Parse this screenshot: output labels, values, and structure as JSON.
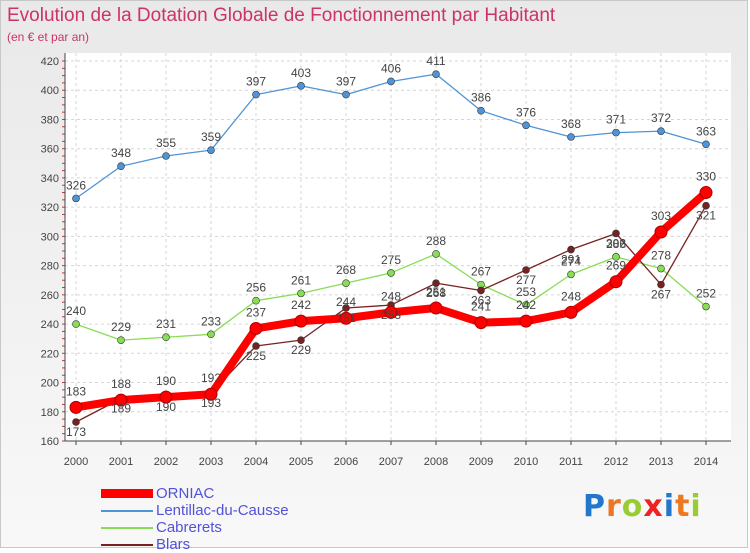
{
  "chart_data": {
    "type": "line",
    "title": "Evolution de la Dotation Globale de Fonctionnement par Habitant",
    "subtitle": "(en € et par an)",
    "x": [
      "2000",
      "2001",
      "2002",
      "2003",
      "2004",
      "2005",
      "2006",
      "2007",
      "2008",
      "2009",
      "2010",
      "2011",
      "2012",
      "2013",
      "2014"
    ],
    "ylim": [
      160,
      420
    ],
    "yticks": [
      160,
      180,
      200,
      220,
      240,
      260,
      280,
      300,
      320,
      340,
      360,
      380,
      400,
      420
    ],
    "grid": true,
    "legend_position": "bottom-left",
    "series": [
      {
        "name": "ORNIAC",
        "color": "#ff0000",
        "values": [
          183,
          188,
          190,
          192,
          237,
          242,
          244,
          248,
          251,
          241,
          242,
          248,
          269,
          303,
          330
        ]
      },
      {
        "name": "Lentillac-du-Causse",
        "color": "#4f94d6",
        "values": [
          326,
          348,
          355,
          359,
          397,
          403,
          397,
          406,
          411,
          386,
          376,
          368,
          371,
          372,
          363
        ]
      },
      {
        "name": "Cabrerets",
        "color": "#88dd55",
        "values": [
          240,
          229,
          231,
          233,
          256,
          261,
          268,
          275,
          288,
          267,
          253,
          274,
          286,
          278,
          252
        ]
      },
      {
        "name": "Blars",
        "color": "#772222",
        "values": [
          173,
          189,
          190,
          193,
          225,
          229,
          251,
          253,
          268,
          263,
          277,
          291,
          302,
          267,
          321
        ]
      }
    ]
  },
  "brand": {
    "letters": [
      "P",
      "r",
      "o",
      "x",
      "i",
      "t",
      "i"
    ],
    "colors": [
      "#2277cc",
      "#ee7722",
      "#99cc33",
      "#ee2222",
      "#2277cc",
      "#ee7722",
      "#99cc33"
    ]
  }
}
